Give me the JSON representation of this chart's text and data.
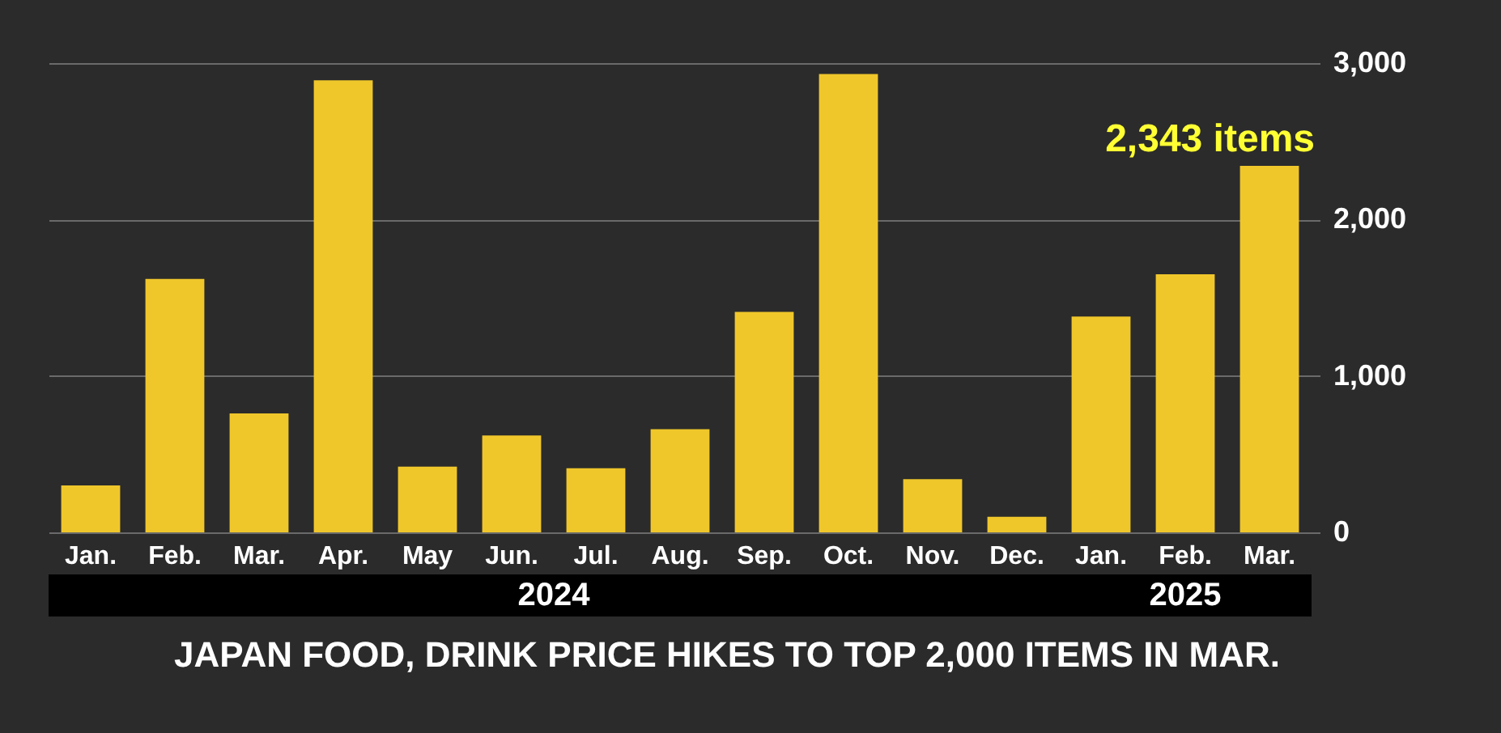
{
  "chart_data": {
    "type": "bar",
    "title": "JAPAN FOOD, DRINK PRICE HIKES TO TOP 2,000 ITEMS IN MAR.",
    "categories": [
      "Jan.",
      "Feb.",
      "Mar.",
      "Apr.",
      "May",
      "Jun.",
      "Jul.",
      "Aug.",
      "Sep.",
      "Oct.",
      "Nov.",
      "Dec.",
      "Jan.",
      "Feb.",
      "Mar."
    ],
    "values": [
      300,
      1620,
      760,
      2890,
      420,
      620,
      410,
      660,
      1410,
      2930,
      340,
      100,
      1380,
      1650,
      2343
    ],
    "value_labels": [
      null,
      null,
      null,
      null,
      null,
      null,
      null,
      null,
      null,
      null,
      null,
      null,
      null,
      null,
      "2,343 items"
    ],
    "color": "#f0c72b",
    "ylim": [
      0,
      3000
    ],
    "yticks": [
      0,
      {
        "value": 1000,
        "label": "1,000"
      },
      {
        "value": 2000,
        "label": "2,000"
      },
      {
        "value": 3000,
        "label": "3,000"
      }
    ],
    "grid": "y",
    "annotations": [
      "2024",
      "2025"
    ]
  }
}
